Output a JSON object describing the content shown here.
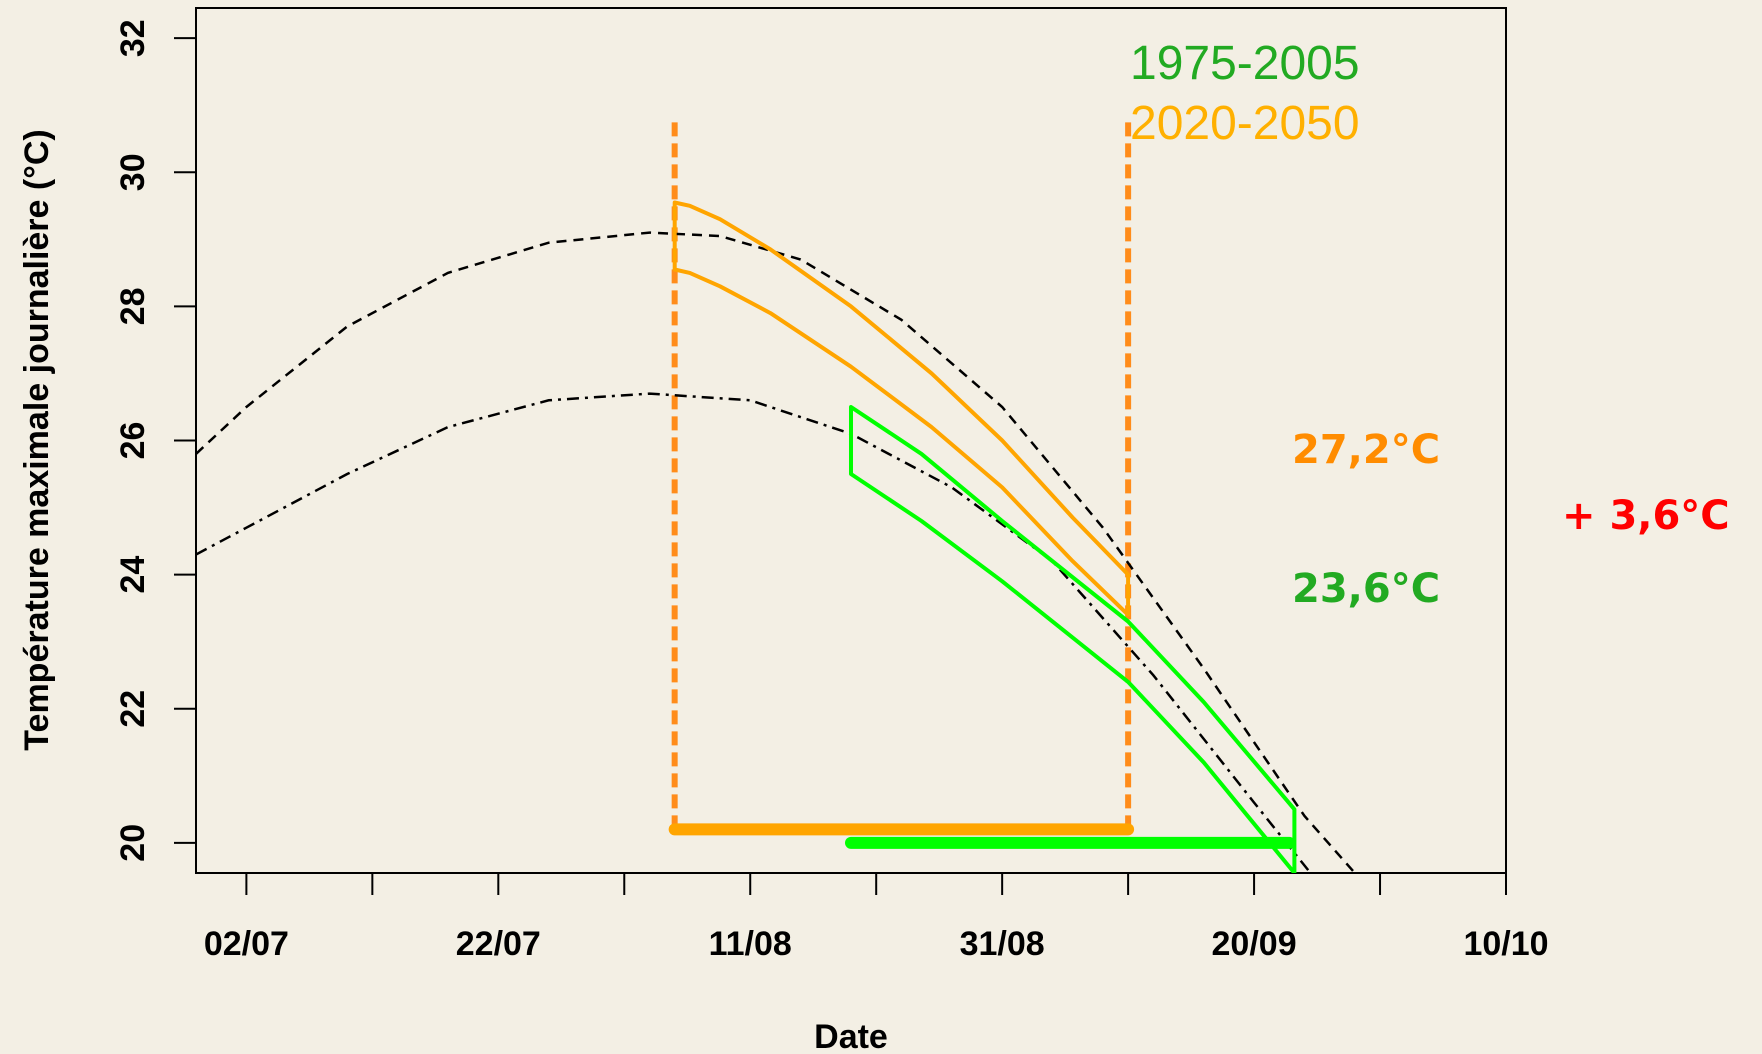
{
  "chart_data": {
    "type": "line",
    "title": "",
    "xlabel": "Date",
    "ylabel": "Température maximale journalière (°C)",
    "x_range_days": [
      -5,
      125
    ],
    "x_ticks": {
      "positions": [
        0,
        12.5,
        25,
        37.5,
        50,
        62.5,
        75,
        87.5,
        100,
        112.5,
        125
      ],
      "labels": [
        {
          "x": 0,
          "label": "02/07"
        },
        {
          "x": 25,
          "label": "22/07"
        },
        {
          "x": 50,
          "label": "11/08"
        },
        {
          "x": 75,
          "label": "31/08"
        },
        {
          "x": 100,
          "label": "20/09"
        },
        {
          "x": 125,
          "label": "10/10"
        }
      ]
    },
    "ylim": [
      19.55,
      32.45
    ],
    "y_ticks": [
      20,
      22,
      24,
      26,
      28,
      30,
      32
    ],
    "grid": false,
    "series": [
      {
        "style": "dashed",
        "color": "#000000",
        "points": [
          [
            -5,
            25.8
          ],
          [
            0,
            26.5
          ],
          [
            10,
            27.7
          ],
          [
            20,
            28.5
          ],
          [
            30,
            28.95
          ],
          [
            40,
            29.1
          ],
          [
            47,
            29.05
          ],
          [
            55,
            28.7
          ],
          [
            65,
            27.8
          ],
          [
            75,
            26.5
          ],
          [
            85,
            24.7
          ],
          [
            95,
            22.6
          ],
          [
            105,
            20.4
          ],
          [
            115,
            18.7
          ]
        ]
      },
      {
        "style": "dashdot",
        "color": "#000000",
        "points": [
          [
            -5,
            24.3
          ],
          [
            0,
            24.7
          ],
          [
            10,
            25.5
          ],
          [
            20,
            26.2
          ],
          [
            30,
            26.6
          ],
          [
            40,
            26.7
          ],
          [
            50,
            26.6
          ],
          [
            60,
            26.1
          ],
          [
            70,
            25.3
          ],
          [
            80,
            24.2
          ],
          [
            90,
            22.5
          ],
          [
            100,
            20.6
          ],
          [
            108,
            19.1
          ]
        ]
      },
      {
        "name": "2020-2050",
        "style": "band",
        "color": "#ffa500",
        "upper": [
          [
            42.5,
            29.55
          ],
          [
            44,
            29.5
          ],
          [
            47,
            29.3
          ],
          [
            52,
            28.85
          ],
          [
            60,
            28.0
          ],
          [
            68,
            27.0
          ],
          [
            75,
            26.0
          ],
          [
            82,
            24.85
          ],
          [
            87.5,
            24.0
          ]
        ],
        "lower": [
          [
            42.5,
            28.55
          ],
          [
            44,
            28.5
          ],
          [
            47,
            28.3
          ],
          [
            52,
            27.9
          ],
          [
            60,
            27.1
          ],
          [
            68,
            26.2
          ],
          [
            75,
            25.3
          ],
          [
            82,
            24.2
          ],
          [
            87.5,
            23.4
          ]
        ]
      },
      {
        "name": "1975-2005",
        "style": "band",
        "color": "#00ff00",
        "upper": [
          [
            60,
            26.5
          ],
          [
            67,
            25.8
          ],
          [
            75,
            24.8
          ],
          [
            87.5,
            23.3
          ],
          [
            95,
            22.1
          ],
          [
            104,
            20.5
          ]
        ],
        "lower": [
          [
            60,
            25.5
          ],
          [
            67,
            24.8
          ],
          [
            75,
            23.9
          ],
          [
            87.5,
            22.4
          ],
          [
            95,
            21.2
          ],
          [
            104,
            19.55
          ]
        ]
      }
    ],
    "vlines": [
      {
        "x": 42.5,
        "y_from": 20.2,
        "y_to": 30.8,
        "style": "dashed",
        "color": "#ff8c1a"
      },
      {
        "x": 87.5,
        "y_from": 20.2,
        "y_to": 30.8,
        "style": "dashed",
        "color": "#ff8c1a"
      }
    ],
    "hbars": [
      {
        "x_from": 42.5,
        "x_to": 87.5,
        "y": 20.2,
        "color": "#ffa500"
      },
      {
        "x_from": 60,
        "x_to": 103.5,
        "y": 20.0,
        "color": "#00ff00"
      }
    ],
    "legend": {
      "placement": "top-right",
      "entries": [
        {
          "label": "1975-2005",
          "color": "#22aa22"
        },
        {
          "label": "2020-2050",
          "color": "#ffb000"
        }
      ]
    },
    "annotations": [
      {
        "text": "27,2°C",
        "color": "#ff8c00"
      },
      {
        "text": "23,6°C",
        "color": "#22aa22"
      },
      {
        "text": "+ 3,6°C",
        "color": "#ff0000"
      }
    ]
  }
}
